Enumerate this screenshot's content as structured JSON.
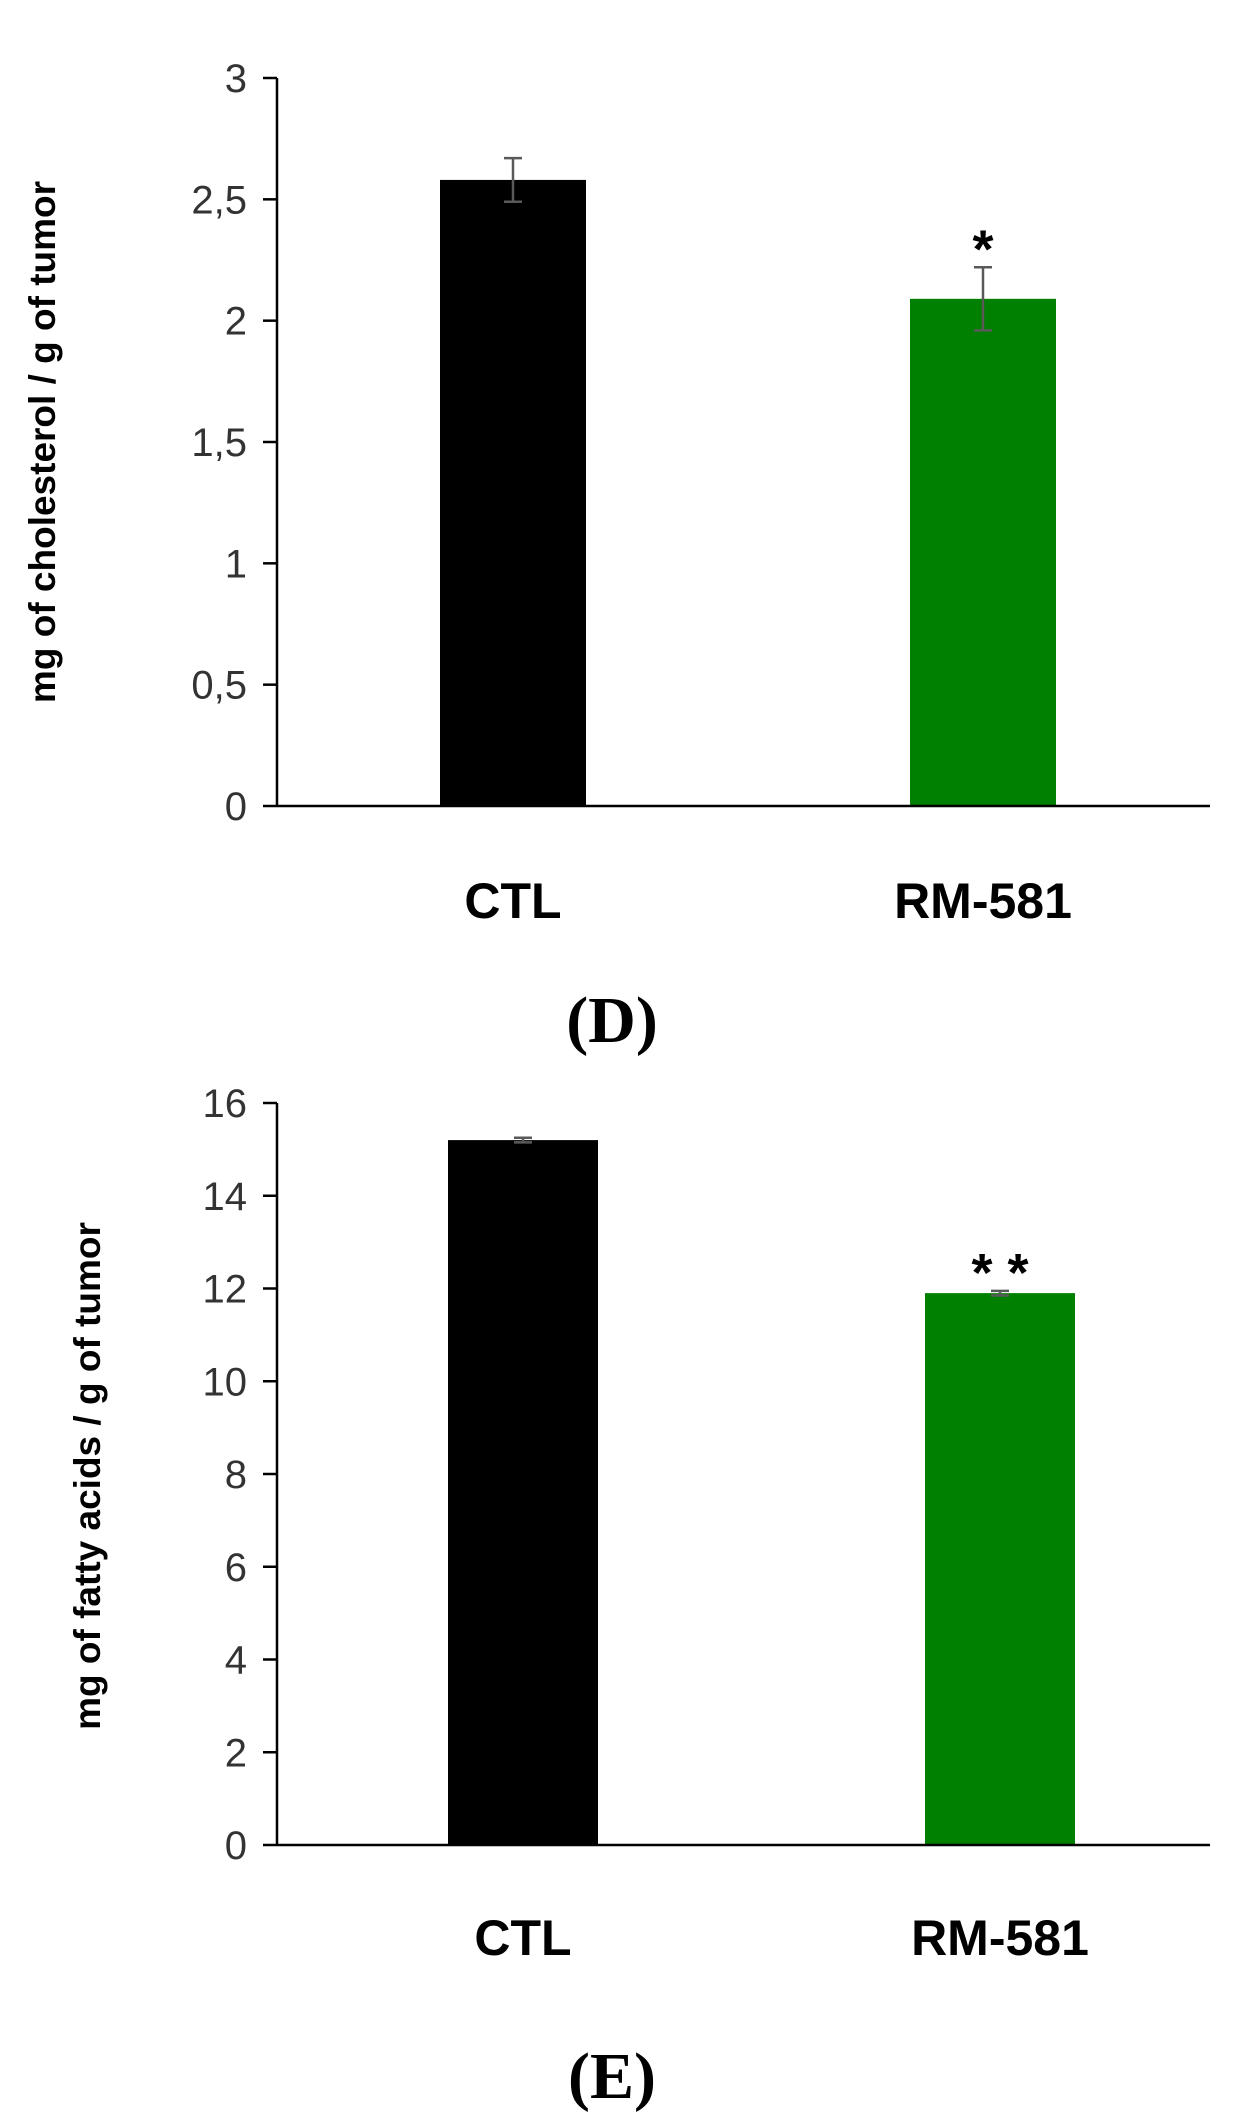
{
  "chart_data": [
    {
      "type": "bar",
      "panel_label": "(D)",
      "categories": [
        "CTL",
        "RM-581"
      ],
      "values": [
        2.58,
        2.09
      ],
      "errors": [
        0.09,
        0.13
      ],
      "significance": [
        "",
        "*"
      ],
      "colors": [
        "#000000",
        "#008000"
      ],
      "ylabel": "mg of cholesterol / g of tumor",
      "ylim": [
        0,
        3
      ],
      "yticks": [
        0,
        0.5,
        1,
        1.5,
        2,
        2.5,
        3
      ],
      "ytick_labels": [
        "0",
        "0,5",
        "1",
        "1,5",
        "2",
        "2,5",
        "3"
      ],
      "grid": false
    },
    {
      "type": "bar",
      "panel_label": "(E)",
      "categories": [
        "CTL",
        "RM-581"
      ],
      "values": [
        15.2,
        11.9
      ],
      "errors": [
        0.05,
        0.05
      ],
      "significance": [
        "",
        "* *"
      ],
      "colors": [
        "#000000",
        "#008000"
      ],
      "ylabel": "mg of fatty acids / g of tumor",
      "ylim": [
        0,
        16
      ],
      "yticks": [
        0,
        2,
        4,
        6,
        8,
        10,
        12,
        14,
        16
      ],
      "ytick_labels": [
        "0",
        "2",
        "4",
        "6",
        "8",
        "10",
        "12",
        "14",
        "16"
      ],
      "grid": false
    }
  ]
}
